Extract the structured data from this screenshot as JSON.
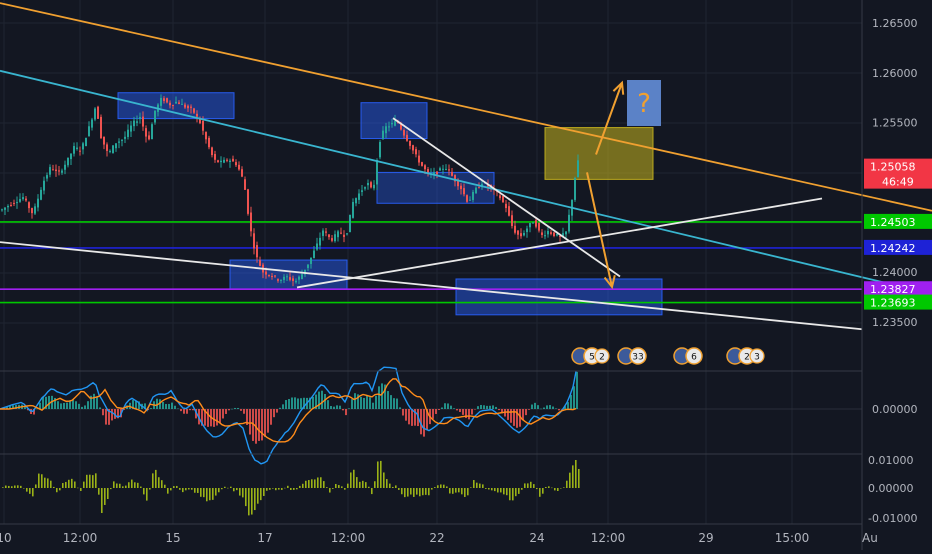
{
  "chart_data": [
    {
      "type": "candlestick",
      "title": "",
      "price_axis": {
        "ticks": [
          "1.26500",
          "1.26000",
          "1.25500",
          "1.25000",
          "1.24500",
          "1.24000",
          "1.23500"
        ],
        "range": [
          1.2323,
          1.2679
        ]
      },
      "time_axis": {
        "ticks": [
          "10",
          "12:00",
          "15",
          "17",
          "12:00",
          "22",
          "24",
          "12:00",
          "29",
          "15:00",
          "Au"
        ]
      },
      "price_labels": [
        {
          "name": "last-price",
          "value": "1.25058",
          "countdown": "46:49",
          "color": "#f23645"
        },
        {
          "name": "level-124503",
          "value": "1.24503",
          "color": "#00c800"
        },
        {
          "name": "level-124242",
          "value": "1.24242",
          "color": "#1e22d6"
        },
        {
          "name": "level-123827",
          "value": "1.23827",
          "color": "#a020f0"
        },
        {
          "name": "level-123693",
          "value": "1.23693",
          "color": "#00c800"
        }
      ],
      "horizontal_levels": [
        {
          "price": 1.24503,
          "color": "#00c800"
        },
        {
          "price": 1.24242,
          "color": "#1e22d6"
        },
        {
          "price": 1.23827,
          "color": "#a020f0"
        },
        {
          "price": 1.23693,
          "color": "#00c800"
        }
      ],
      "trend_lines": [
        {
          "name": "orange-resistance",
          "color": "#f0a030",
          "from": [
            0,
            1.267
          ],
          "to": [
            932,
            1.24615
          ]
        },
        {
          "name": "cyan-trendline",
          "color": "#39b5cf",
          "from": [
            0,
            1.2602
          ],
          "to": [
            932,
            1.23779
          ]
        },
        {
          "name": "lower-white-trendline",
          "color": "#e8e8e8",
          "from": [
            0,
            1.243
          ],
          "to": [
            862,
            1.23425
          ]
        },
        {
          "name": "rising-white-line",
          "color": "#e8e8e8",
          "from": [
            297,
            1.23845
          ],
          "to": [
            822,
            1.24738
          ]
        },
        {
          "name": "falling-white-line",
          "color": "#e8e8e8",
          "from": [
            393,
            1.25545
          ],
          "to": [
            620,
            1.23955
          ]
        }
      ],
      "price_series": [
        {
          "x": 0,
          "y": 1.2462
        },
        {
          "x": 12,
          "y": 1.247
        },
        {
          "x": 22,
          "y": 1.2475
        },
        {
          "x": 32,
          "y": 1.2458
        },
        {
          "x": 42,
          "y": 1.249
        },
        {
          "x": 50,
          "y": 1.2506
        },
        {
          "x": 57,
          "y": 1.2498
        },
        {
          "x": 66,
          "y": 1.2511
        },
        {
          "x": 73,
          "y": 1.2525
        },
        {
          "x": 80,
          "y": 1.2522
        },
        {
          "x": 88,
          "y": 1.2545
        },
        {
          "x": 95,
          "y": 1.2568
        },
        {
          "x": 100,
          "y": 1.2536
        },
        {
          "x": 107,
          "y": 1.2518
        },
        {
          "x": 115,
          "y": 1.253
        },
        {
          "x": 123,
          "y": 1.2534
        },
        {
          "x": 131,
          "y": 1.2548
        },
        {
          "x": 139,
          "y": 1.2556
        },
        {
          "x": 147,
          "y": 1.253
        },
        {
          "x": 154,
          "y": 1.2562
        },
        {
          "x": 161,
          "y": 1.2575
        },
        {
          "x": 168,
          "y": 1.2568
        },
        {
          "x": 176,
          "y": 1.2571
        },
        {
          "x": 184,
          "y": 1.2566
        },
        {
          "x": 192,
          "y": 1.2562
        },
        {
          "x": 199,
          "y": 1.255
        },
        {
          "x": 206,
          "y": 1.253
        },
        {
          "x": 213,
          "y": 1.2512
        },
        {
          "x": 220,
          "y": 1.251
        },
        {
          "x": 228,
          "y": 1.2513
        },
        {
          "x": 236,
          "y": 1.2508
        },
        {
          "x": 243,
          "y": 1.249
        },
        {
          "x": 249,
          "y": 1.2445
        },
        {
          "x": 255,
          "y": 1.2416
        },
        {
          "x": 262,
          "y": 1.24
        },
        {
          "x": 270,
          "y": 1.2397
        },
        {
          "x": 278,
          "y": 1.2392
        },
        {
          "x": 286,
          "y": 1.2395
        },
        {
          "x": 294,
          "y": 1.239
        },
        {
          "x": 301,
          "y": 1.2398
        },
        {
          "x": 308,
          "y": 1.241
        },
        {
          "x": 315,
          "y": 1.2425
        },
        {
          "x": 322,
          "y": 1.2442
        },
        {
          "x": 330,
          "y": 1.2432
        },
        {
          "x": 338,
          "y": 1.244
        },
        {
          "x": 345,
          "y": 1.2436
        },
        {
          "x": 352,
          "y": 1.247
        },
        {
          "x": 359,
          "y": 1.248
        },
        {
          "x": 366,
          "y": 1.249
        },
        {
          "x": 372,
          "y": 1.248
        },
        {
          "x": 378,
          "y": 1.253
        },
        {
          "x": 384,
          "y": 1.2545
        },
        {
          "x": 390,
          "y": 1.2548
        },
        {
          "x": 396,
          "y": 1.2552
        },
        {
          "x": 402,
          "y": 1.254
        },
        {
          "x": 408,
          "y": 1.253
        },
        {
          "x": 414,
          "y": 1.2518
        },
        {
          "x": 420,
          "y": 1.2508
        },
        {
          "x": 428,
          "y": 1.2497
        },
        {
          "x": 436,
          "y": 1.25
        },
        {
          "x": 444,
          "y": 1.2506
        },
        {
          "x": 452,
          "y": 1.2495
        },
        {
          "x": 460,
          "y": 1.2484
        },
        {
          "x": 467,
          "y": 1.247
        },
        {
          "x": 474,
          "y": 1.2482
        },
        {
          "x": 481,
          "y": 1.249
        },
        {
          "x": 489,
          "y": 1.2485
        },
        {
          "x": 497,
          "y": 1.2478
        },
        {
          "x": 505,
          "y": 1.2465
        },
        {
          "x": 512,
          "y": 1.2443
        },
        {
          "x": 519,
          "y": 1.2435
        },
        {
          "x": 526,
          "y": 1.2444
        },
        {
          "x": 533,
          "y": 1.2452
        },
        {
          "x": 540,
          "y": 1.2436
        },
        {
          "x": 547,
          "y": 1.2441
        },
        {
          "x": 554,
          "y": 1.2437
        },
        {
          "x": 560,
          "y": 1.2435
        },
        {
          "x": 565,
          "y": 1.244
        },
        {
          "x": 569,
          "y": 1.2462
        },
        {
          "x": 573,
          "y": 1.2485
        },
        {
          "x": 576,
          "y": 1.2515
        },
        {
          "x": 578,
          "y": 1.2506
        }
      ],
      "zones": [
        {
          "name": "zone-top-left",
          "from": [
            118,
            1.258
          ],
          "to": [
            234,
            1.2554
          ],
          "color": "#2962ff",
          "opacity": 0.45
        },
        {
          "name": "zone-top-mid",
          "from": [
            361,
            1.257
          ],
          "to": [
            427,
            1.2534
          ],
          "color": "#2962ff",
          "opacity": 0.45
        },
        {
          "name": "zone-mid",
          "from": [
            377,
            1.25
          ],
          "to": [
            494,
            1.2469
          ],
          "color": "#2962ff",
          "opacity": 0.35
        },
        {
          "name": "zone-low-left",
          "from": [
            230,
            1.2412
          ],
          "to": [
            347,
            1.2383
          ],
          "color": "#2962ff",
          "opacity": 0.45
        },
        {
          "name": "zone-low-right",
          "from": [
            456,
            1.2393
          ],
          "to": [
            662,
            1.2357
          ],
          "color": "#2962ff",
          "opacity": 0.45
        },
        {
          "name": "zone-yellow",
          "from": [
            545,
            1.2545
          ],
          "to": [
            653,
            1.2493
          ],
          "color": "#c9b61d",
          "opacity": 0.55
        }
      ],
      "arrows": [
        {
          "name": "arrow-up",
          "color": "#f0a030",
          "from": [
            596,
            1.2518
          ],
          "to": [
            622,
            1.259
          ]
        },
        {
          "name": "arrow-down",
          "color": "#f0a030",
          "from": [
            587,
            1.25
          ],
          "to": [
            612,
            1.2385
          ]
        }
      ],
      "question_box": {
        "text": "?",
        "color": "#5b82c7"
      },
      "event_badges": [
        {
          "name": "event-us-5-2",
          "label": "5",
          "label2": "2"
        },
        {
          "name": "event-gb-33",
          "label": "33",
          "label2": ""
        },
        {
          "name": "event-us-6",
          "label": "6",
          "label2": ""
        },
        {
          "name": "event-us-gb-2-3",
          "label": "2",
          "label2": "3"
        }
      ]
    },
    {
      "type": "macd",
      "title": "",
      "axis_ticks": [
        "0.00000"
      ],
      "macd_line_color": "#2196f3",
      "signal_line_color": "#ff8c1a",
      "histogram_positive_color": "#26a69a",
      "histogram_negative_color": "#ef5350"
    },
    {
      "type": "histogram",
      "title": "",
      "axis_ticks": [
        "0.01000",
        "0.00000",
        "-0.01000"
      ],
      "bar_color": "#9bb217"
    }
  ]
}
